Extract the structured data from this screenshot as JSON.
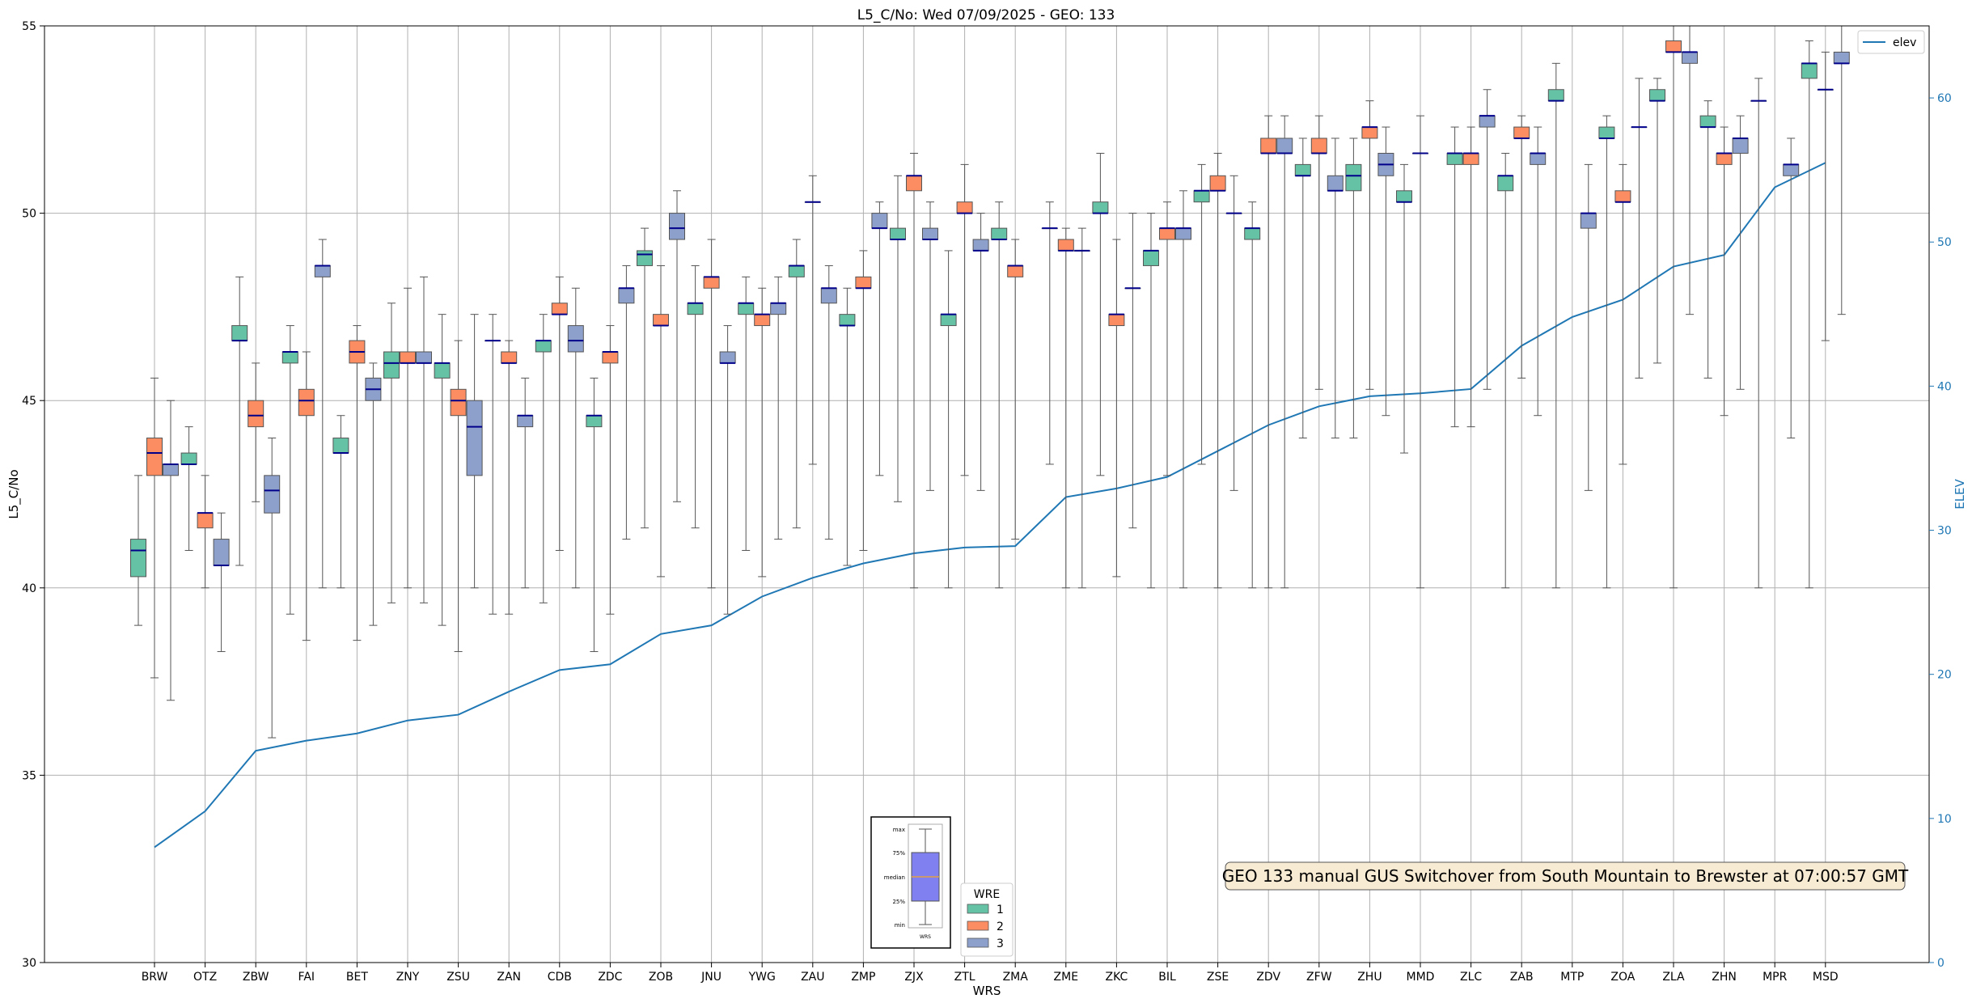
{
  "chart_data": {
    "type": "box",
    "title": "L5_C/No: Wed 07/09/2025 - GEO: 133",
    "xlabel": "WRS",
    "ylabel": "L5_C/No",
    "y2label": "ELEV",
    "ylim": [
      30,
      55
    ],
    "y2lim": [
      0,
      65
    ],
    "yticks": [
      30,
      35,
      40,
      45,
      50,
      55
    ],
    "y2ticks": [
      0,
      10,
      20,
      30,
      40,
      50,
      60
    ],
    "grid": true,
    "categories": [
      "BRW",
      "OTZ",
      "ZBW",
      "FAI",
      "BET",
      "ZNY",
      "ZSU",
      "ZAN",
      "CDB",
      "ZDC",
      "ZOB",
      "JNU",
      "YWG",
      "ZAU",
      "ZMP",
      "ZJX",
      "ZTL",
      "ZMA",
      "ZME",
      "ZKC",
      "BIL",
      "ZSE",
      "ZDV",
      "ZFW",
      "ZHU",
      "MMD",
      "ZLC",
      "ZAB",
      "MTP",
      "ZOA",
      "ZLA",
      "ZHN",
      "MPR",
      "MSD"
    ],
    "wre_colors": {
      "1": "#66c2a5",
      "2": "#fc8d62",
      "3": "#8da0cb"
    },
    "legend_box": {
      "title": "WRE",
      "entries": [
        "1",
        "2",
        "3"
      ],
      "placement": "bottom-center"
    },
    "legend_line": {
      "entries": [
        "elev"
      ],
      "placement": "top-right"
    },
    "key_labels": [
      "max",
      "75%",
      "median",
      "25%",
      "min",
      "WRS"
    ],
    "annotation": "GEO 133 manual GUS Switchover from South Mountain to Brewster at 07:00:57 GMT",
    "elev_series": {
      "name": "elev",
      "color": "#1f77b4",
      "values": [
        8,
        10.5,
        14.7,
        15.4,
        15.9,
        16.8,
        17.2,
        18.8,
        20.3,
        20.7,
        22.8,
        23.4,
        25.4,
        26.7,
        27.7,
        28.4,
        28.8,
        28.9,
        32.3,
        32.9,
        33.7,
        35.5,
        37.3,
        38.6,
        39.3,
        39.5,
        39.8,
        42.8,
        44.8,
        46,
        48.3,
        49.1,
        53.8,
        55.5
      ]
    },
    "boxes": [
      {
        "wrs": "BRW",
        "wre": 1,
        "min": 39,
        "q1": 40.3,
        "median": 41,
        "q3": 41.3,
        "max": 43
      },
      {
        "wrs": "BRW",
        "wre": 2,
        "min": 37.6,
        "q1": 43,
        "median": 43.6,
        "q3": 44,
        "max": 45.6
      },
      {
        "wrs": "BRW",
        "wre": 3,
        "min": 37,
        "q1": 43,
        "median": 43.3,
        "q3": 43.3,
        "max": 45
      },
      {
        "wrs": "OTZ",
        "wre": 1,
        "min": 41,
        "q1": 43.3,
        "median": 43.3,
        "q3": 43.6,
        "max": 44.3
      },
      {
        "wrs": "OTZ",
        "wre": 2,
        "min": 40,
        "q1": 41.6,
        "median": 42,
        "q3": 42,
        "max": 43
      },
      {
        "wrs": "OTZ",
        "wre": 3,
        "min": 38.3,
        "q1": 40.6,
        "median": 40.6,
        "q3": 41.3,
        "max": 42
      },
      {
        "wrs": "ZBW",
        "wre": 1,
        "min": 40.6,
        "q1": 46.6,
        "median": 46.6,
        "q3": 47,
        "max": 48.3
      },
      {
        "wrs": "ZBW",
        "wre": 2,
        "min": 42.3,
        "q1": 44.3,
        "median": 44.6,
        "q3": 45,
        "max": 46
      },
      {
        "wrs": "ZBW",
        "wre": 3,
        "min": 36,
        "q1": 42,
        "median": 42.6,
        "q3": 43,
        "max": 44
      },
      {
        "wrs": "FAI",
        "wre": 1,
        "min": 39.3,
        "q1": 46,
        "median": 46.3,
        "q3": 46.3,
        "max": 47
      },
      {
        "wrs": "FAI",
        "wre": 2,
        "min": 38.6,
        "q1": 44.6,
        "median": 45,
        "q3": 45.3,
        "max": 46.3
      },
      {
        "wrs": "FAI",
        "wre": 3,
        "min": 40,
        "q1": 48.3,
        "median": 48.6,
        "q3": 48.6,
        "max": 49.3
      },
      {
        "wrs": "BET",
        "wre": 1,
        "min": 40,
        "q1": 43.6,
        "median": 43.6,
        "q3": 44,
        "max": 44.6
      },
      {
        "wrs": "BET",
        "wre": 2,
        "min": 38.6,
        "q1": 46,
        "median": 46.3,
        "q3": 46.6,
        "max": 47
      },
      {
        "wrs": "BET",
        "wre": 3,
        "min": 39,
        "q1": 45,
        "median": 45.3,
        "q3": 45.6,
        "max": 46
      },
      {
        "wrs": "ZNY",
        "wre": 1,
        "min": 39.6,
        "q1": 45.6,
        "median": 46,
        "q3": 46.3,
        "max": 47.6
      },
      {
        "wrs": "ZNY",
        "wre": 2,
        "min": 40,
        "q1": 46,
        "median": 46,
        "q3": 46.3,
        "max": 48
      },
      {
        "wrs": "ZNY",
        "wre": 3,
        "min": 39.6,
        "q1": 46,
        "median": 46,
        "q3": 46.3,
        "max": 48.3
      },
      {
        "wrs": "ZSU",
        "wre": 1,
        "min": 39,
        "q1": 45.6,
        "median": 46,
        "q3": 46,
        "max": 47.3
      },
      {
        "wrs": "ZSU",
        "wre": 2,
        "min": 38.3,
        "q1": 44.6,
        "median": 45,
        "q3": 45.3,
        "max": 46.6
      },
      {
        "wrs": "ZSU",
        "wre": 3,
        "min": 40,
        "q1": 43,
        "median": 44.3,
        "q3": 45,
        "max": 47.3
      },
      {
        "wrs": "ZAN",
        "wre": 1,
        "min": 39.3,
        "q1": 46.6,
        "median": 46.6,
        "q3": 46.6,
        "max": 47.3
      },
      {
        "wrs": "ZAN",
        "wre": 2,
        "min": 39.3,
        "q1": 46,
        "median": 46,
        "q3": 46.3,
        "max": 46.6
      },
      {
        "wrs": "ZAN",
        "wre": 3,
        "min": 40,
        "q1": 44.3,
        "median": 44.6,
        "q3": 44.6,
        "max": 45.6
      },
      {
        "wrs": "CDB",
        "wre": 1,
        "min": 39.6,
        "q1": 46.3,
        "median": 46.6,
        "q3": 46.6,
        "max": 47.3
      },
      {
        "wrs": "CDB",
        "wre": 2,
        "min": 41,
        "q1": 47.3,
        "median": 47.3,
        "q3": 47.6,
        "max": 48.3
      },
      {
        "wrs": "CDB",
        "wre": 3,
        "min": 40,
        "q1": 46.3,
        "median": 46.6,
        "q3": 47,
        "max": 48
      },
      {
        "wrs": "ZDC",
        "wre": 1,
        "min": 38.3,
        "q1": 44.3,
        "median": 44.6,
        "q3": 44.6,
        "max": 45.6
      },
      {
        "wrs": "ZDC",
        "wre": 2,
        "min": 39.3,
        "q1": 46,
        "median": 46.3,
        "q3": 46.3,
        "max": 47
      },
      {
        "wrs": "ZDC",
        "wre": 3,
        "min": 41.3,
        "q1": 47.6,
        "median": 48,
        "q3": 48,
        "max": 48.6
      },
      {
        "wrs": "ZOB",
        "wre": 1,
        "min": 41.6,
        "q1": 48.6,
        "median": 48.9,
        "q3": 49,
        "max": 49.6
      },
      {
        "wrs": "ZOB",
        "wre": 2,
        "min": 40.3,
        "q1": 47,
        "median": 47,
        "q3": 47.3,
        "max": 48.6
      },
      {
        "wrs": "ZOB",
        "wre": 3,
        "min": 42.3,
        "q1": 49.3,
        "median": 49.6,
        "q3": 50,
        "max": 50.6
      },
      {
        "wrs": "JNU",
        "wre": 1,
        "min": 41.6,
        "q1": 47.3,
        "median": 47.6,
        "q3": 47.6,
        "max": 48.6
      },
      {
        "wrs": "JNU",
        "wre": 2,
        "min": 40,
        "q1": 48,
        "median": 48.3,
        "q3": 48.3,
        "max": 49.3
      },
      {
        "wrs": "JNU",
        "wre": 3,
        "min": 39.3,
        "q1": 46,
        "median": 46,
        "q3": 46.3,
        "max": 47
      },
      {
        "wrs": "YWG",
        "wre": 1,
        "min": 41,
        "q1": 47.3,
        "median": 47.6,
        "q3": 47.6,
        "max": 48.3
      },
      {
        "wrs": "YWG",
        "wre": 2,
        "min": 40.3,
        "q1": 47,
        "median": 47.3,
        "q3": 47.3,
        "max": 48
      },
      {
        "wrs": "YWG",
        "wre": 3,
        "min": 41.3,
        "q1": 47.3,
        "median": 47.6,
        "q3": 47.6,
        "max": 48.3
      },
      {
        "wrs": "ZAU",
        "wre": 1,
        "min": 41.6,
        "q1": 48.3,
        "median": 48.6,
        "q3": 48.6,
        "max": 49.3
      },
      {
        "wrs": "ZAU",
        "wre": 2,
        "min": 43.3,
        "q1": 50.3,
        "median": 50.3,
        "q3": 50.3,
        "max": 51
      },
      {
        "wrs": "ZAU",
        "wre": 3,
        "min": 41.3,
        "q1": 47.6,
        "median": 48,
        "q3": 48,
        "max": 48.6
      },
      {
        "wrs": "ZMP",
        "wre": 1,
        "min": 40.6,
        "q1": 47,
        "median": 47,
        "q3": 47.3,
        "max": 48
      },
      {
        "wrs": "ZMP",
        "wre": 2,
        "min": 41,
        "q1": 48,
        "median": 48,
        "q3": 48.3,
        "max": 49
      },
      {
        "wrs": "ZMP",
        "wre": 3,
        "min": 43,
        "q1": 49.6,
        "median": 49.6,
        "q3": 50,
        "max": 50.3
      },
      {
        "wrs": "ZJX",
        "wre": 1,
        "min": 42.3,
        "q1": 49.3,
        "median": 49.3,
        "q3": 49.6,
        "max": 51
      },
      {
        "wrs": "ZJX",
        "wre": 2,
        "min": 40,
        "q1": 50.6,
        "median": 51,
        "q3": 51,
        "max": 51.6
      },
      {
        "wrs": "ZJX",
        "wre": 3,
        "min": 42.6,
        "q1": 49.3,
        "median": 49.3,
        "q3": 49.6,
        "max": 50.3
      },
      {
        "wrs": "ZTL",
        "wre": 1,
        "min": 40,
        "q1": 47,
        "median": 47.3,
        "q3": 47.3,
        "max": 49
      },
      {
        "wrs": "ZTL",
        "wre": 2,
        "min": 43,
        "q1": 50,
        "median": 50,
        "q3": 50.3,
        "max": 51.3
      },
      {
        "wrs": "ZTL",
        "wre": 3,
        "min": 42.6,
        "q1": 49,
        "median": 49,
        "q3": 49.3,
        "max": 50
      },
      {
        "wrs": "ZMA",
        "wre": 1,
        "min": 40,
        "q1": 49.3,
        "median": 49.3,
        "q3": 49.6,
        "max": 50.3
      },
      {
        "wrs": "ZMA",
        "wre": 2,
        "min": 41.3,
        "q1": 48.3,
        "median": 48.6,
        "q3": 48.6,
        "max": 49.3
      },
      {
        "wrs": "ZME",
        "wre": 1,
        "min": 43.3,
        "q1": 49.6,
        "median": 49.6,
        "q3": 49.6,
        "max": 50.3
      },
      {
        "wrs": "ZME",
        "wre": 2,
        "min": 40,
        "q1": 49,
        "median": 49,
        "q3": 49.3,
        "max": 49.6
      },
      {
        "wrs": "ZME",
        "wre": 3,
        "min": 40,
        "q1": 49,
        "median": 49,
        "q3": 49,
        "max": 49.6
      },
      {
        "wrs": "ZKC",
        "wre": 1,
        "min": 43,
        "q1": 50,
        "median": 50,
        "q3": 50.3,
        "max": 51.6
      },
      {
        "wrs": "ZKC",
        "wre": 2,
        "min": 40.3,
        "q1": 47,
        "median": 47.3,
        "q3": 47.3,
        "max": 49.3
      },
      {
        "wrs": "ZKC",
        "wre": 3,
        "min": 41.6,
        "q1": 48,
        "median": 48,
        "q3": 48,
        "max": 50
      },
      {
        "wrs": "BIL",
        "wre": 1,
        "min": 40,
        "q1": 48.6,
        "median": 49,
        "q3": 49,
        "max": 50
      },
      {
        "wrs": "BIL",
        "wre": 2,
        "min": 43,
        "q1": 49.3,
        "median": 49.6,
        "q3": 49.6,
        "max": 50.3
      },
      {
        "wrs": "BIL",
        "wre": 3,
        "min": 40,
        "q1": 49.3,
        "median": 49.6,
        "q3": 49.6,
        "max": 50.6
      },
      {
        "wrs": "ZSE",
        "wre": 1,
        "min": 43.3,
        "q1": 50.3,
        "median": 50.6,
        "q3": 50.6,
        "max": 51.3
      },
      {
        "wrs": "ZSE",
        "wre": 2,
        "min": 40,
        "q1": 50.6,
        "median": 50.6,
        "q3": 51,
        "max": 51.6
      },
      {
        "wrs": "ZSE",
        "wre": 3,
        "min": 42.6,
        "q1": 50,
        "median": 50,
        "q3": 50,
        "max": 51
      },
      {
        "wrs": "ZDV",
        "wre": 1,
        "min": 40,
        "q1": 49.3,
        "median": 49.6,
        "q3": 49.6,
        "max": 50.3
      },
      {
        "wrs": "ZDV",
        "wre": 2,
        "min": 40,
        "q1": 51.6,
        "median": 51.6,
        "q3": 52,
        "max": 52.6
      },
      {
        "wrs": "ZDV",
        "wre": 3,
        "min": 40,
        "q1": 51.6,
        "median": 51.6,
        "q3": 52,
        "max": 52.6
      },
      {
        "wrs": "ZFW",
        "wre": 1,
        "min": 44,
        "q1": 51,
        "median": 51,
        "q3": 51.3,
        "max": 52
      },
      {
        "wrs": "ZFW",
        "wre": 2,
        "min": 45.3,
        "q1": 51.6,
        "median": 51.6,
        "q3": 52,
        "max": 52.6
      },
      {
        "wrs": "ZFW",
        "wre": 3,
        "min": 44,
        "q1": 50.6,
        "median": 50.6,
        "q3": 51,
        "max": 52
      },
      {
        "wrs": "ZHU",
        "wre": 1,
        "min": 44,
        "q1": 50.6,
        "median": 51,
        "q3": 51.3,
        "max": 52
      },
      {
        "wrs": "ZHU",
        "wre": 2,
        "min": 45.3,
        "q1": 52,
        "median": 52.3,
        "q3": 52.3,
        "max": 53
      },
      {
        "wrs": "ZHU",
        "wre": 3,
        "min": 44.6,
        "q1": 51,
        "median": 51.3,
        "q3": 51.6,
        "max": 52.3
      },
      {
        "wrs": "MMD",
        "wre": 1,
        "min": 43.6,
        "q1": 50.3,
        "median": 50.3,
        "q3": 50.6,
        "max": 51.3
      },
      {
        "wrs": "MMD",
        "wre": 2,
        "min": 40,
        "q1": 51.6,
        "median": 51.6,
        "q3": 51.6,
        "max": 52.6
      },
      {
        "wrs": "ZLC",
        "wre": 1,
        "min": 44.3,
        "q1": 51.3,
        "median": 51.6,
        "q3": 51.6,
        "max": 52.3
      },
      {
        "wrs": "ZLC",
        "wre": 2,
        "min": 44.3,
        "q1": 51.3,
        "median": 51.6,
        "q3": 51.6,
        "max": 52.3
      },
      {
        "wrs": "ZLC",
        "wre": 3,
        "min": 45.3,
        "q1": 52.3,
        "median": 52.6,
        "q3": 52.6,
        "max": 53.3
      },
      {
        "wrs": "ZAB",
        "wre": 1,
        "min": 40,
        "q1": 50.6,
        "median": 51,
        "q3": 51,
        "max": 51.6
      },
      {
        "wrs": "ZAB",
        "wre": 2,
        "min": 45.6,
        "q1": 52,
        "median": 52,
        "q3": 52.3,
        "max": 52.6
      },
      {
        "wrs": "ZAB",
        "wre": 3,
        "min": 44.6,
        "q1": 51.3,
        "median": 51.6,
        "q3": 51.6,
        "max": 52.3
      },
      {
        "wrs": "MTP",
        "wre": 1,
        "min": 40,
        "q1": 53,
        "median": 53,
        "q3": 53.3,
        "max": 54
      },
      {
        "wrs": "MTP",
        "wre": 3,
        "min": 42.6,
        "q1": 49.6,
        "median": 50,
        "q3": 50,
        "max": 51.3
      },
      {
        "wrs": "ZOA",
        "wre": 1,
        "min": 40,
        "q1": 52,
        "median": 52,
        "q3": 52.3,
        "max": 52.6
      },
      {
        "wrs": "ZOA",
        "wre": 2,
        "min": 43.3,
        "q1": 50.3,
        "median": 50.3,
        "q3": 50.6,
        "max": 51.3
      },
      {
        "wrs": "ZOA",
        "wre": 3,
        "min": 45.6,
        "q1": 52.3,
        "median": 52.3,
        "q3": 52.3,
        "max": 53.6
      },
      {
        "wrs": "ZLA",
        "wre": 1,
        "min": 46,
        "q1": 53,
        "median": 53,
        "q3": 53.3,
        "max": 53.6
      },
      {
        "wrs": "ZLA",
        "wre": 2,
        "min": 40,
        "q1": 54.3,
        "median": 54.3,
        "q3": 54.6,
        "max": 55
      },
      {
        "wrs": "ZLA",
        "wre": 3,
        "min": 47.3,
        "q1": 54,
        "median": 54.3,
        "q3": 54.3,
        "max": 55
      },
      {
        "wrs": "ZHN",
        "wre": 1,
        "min": 45.6,
        "q1": 52.3,
        "median": 52.3,
        "q3": 52.6,
        "max": 53
      },
      {
        "wrs": "ZHN",
        "wre": 2,
        "min": 44.6,
        "q1": 51.3,
        "median": 51.6,
        "q3": 51.6,
        "max": 52.3
      },
      {
        "wrs": "ZHN",
        "wre": 3,
        "min": 45.3,
        "q1": 51.6,
        "median": 52,
        "q3": 52,
        "max": 52.6
      },
      {
        "wrs": "MPR",
        "wre": 1,
        "min": 40,
        "q1": 53,
        "median": 53,
        "q3": 53,
        "max": 53.6
      },
      {
        "wrs": "MPR",
        "wre": 3,
        "min": 44,
        "q1": 51,
        "median": 51.3,
        "q3": 51.3,
        "max": 52
      },
      {
        "wrs": "MSD",
        "wre": 1,
        "min": 40,
        "q1": 53.6,
        "median": 54,
        "q3": 54,
        "max": 54.6
      },
      {
        "wrs": "MSD",
        "wre": 2,
        "min": 46.6,
        "q1": 53.3,
        "median": 53.3,
        "q3": 53.3,
        "max": 54.3
      },
      {
        "wrs": "MSD",
        "wre": 3,
        "min": 47.3,
        "q1": 54,
        "median": 54,
        "q3": 54.3,
        "max": 55
      }
    ]
  }
}
